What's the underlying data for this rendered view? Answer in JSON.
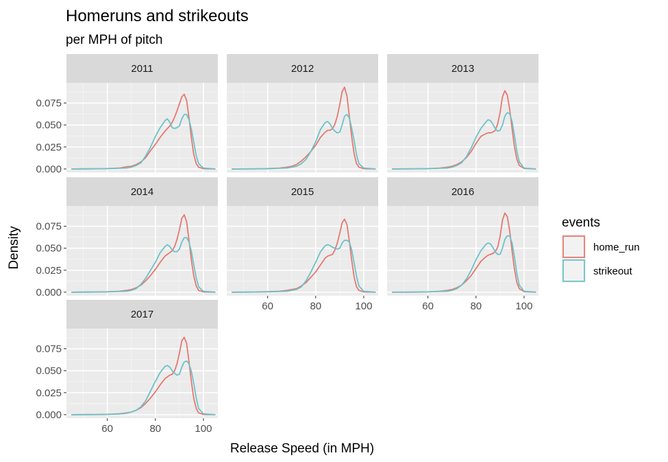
{
  "chart_data": {
    "type": "line",
    "title": "Homeruns and strikeouts",
    "subtitle": "per MPH of pitch",
    "xlabel": "Release Speed (in MPH)",
    "ylabel": "Density",
    "xlim": [
      43,
      106
    ],
    "ylim": [
      -0.004,
      0.098
    ],
    "x_ticks": [
      60,
      80,
      100
    ],
    "x_tick_labels": [
      "60",
      "80",
      "100"
    ],
    "y_ticks": [
      0,
      0.025,
      0.05,
      0.075
    ],
    "y_tick_labels": [
      "0.000",
      "0.025",
      "0.050",
      "0.075"
    ],
    "grid": true,
    "legend": {
      "title": "events",
      "position": "right",
      "entries": [
        {
          "label": "home_run",
          "color": "#E6776F"
        },
        {
          "label": "strikeout",
          "color": "#6CC2C8"
        }
      ]
    },
    "x": [
      45,
      55,
      60,
      65,
      68,
      70,
      72,
      74,
      76,
      78,
      80,
      82,
      84,
      85,
      86,
      87,
      88,
      89,
      90,
      91,
      92,
      93,
      94,
      95,
      96,
      97,
      98,
      100,
      105
    ],
    "panels": [
      {
        "label": "2011",
        "series": [
          {
            "name": "home_run",
            "values": [
              0,
              0.0002,
              0.0005,
              0.001,
              0.0025,
              0.003,
              0.005,
              0.008,
              0.013,
              0.021,
              0.028,
              0.036,
              0.043,
              0.046,
              0.049,
              0.053,
              0.059,
              0.066,
              0.074,
              0.082,
              0.085,
              0.078,
              0.058,
              0.035,
              0.016,
              0.006,
              0.002,
              0.0003,
              0
            ]
          },
          {
            "name": "strikeout",
            "values": [
              0,
              0.0002,
              0.0004,
              0.0008,
              0.001,
              0.002,
              0.004,
              0.007,
              0.015,
              0.025,
              0.037,
              0.047,
              0.055,
              0.057,
              0.053,
              0.047,
              0.046,
              0.047,
              0.049,
              0.057,
              0.062,
              0.062,
              0.056,
              0.045,
              0.03,
              0.015,
              0.006,
              0.001,
              0
            ]
          }
        ]
      },
      {
        "label": "2012",
        "series": [
          {
            "name": "home_run",
            "values": [
              0,
              0.0001,
              0.0005,
              0.001,
              0.002,
              0.003,
              0.005,
              0.009,
              0.014,
              0.02,
              0.027,
              0.036,
              0.042,
              0.044,
              0.044,
              0.046,
              0.051,
              0.06,
              0.073,
              0.088,
              0.093,
              0.083,
              0.06,
              0.036,
              0.017,
              0.006,
              0.002,
              0.0003,
              0
            ]
          },
          {
            "name": "strikeout",
            "values": [
              0,
              0.0002,
              0.0003,
              0.0008,
              0.001,
              0.002,
              0.003,
              0.006,
              0.011,
              0.02,
              0.031,
              0.045,
              0.053,
              0.054,
              0.051,
              0.046,
              0.043,
              0.041,
              0.042,
              0.05,
              0.06,
              0.062,
              0.058,
              0.046,
              0.032,
              0.016,
              0.006,
              0.001,
              0
            ]
          }
        ]
      },
      {
        "label": "2013",
        "series": [
          {
            "name": "home_run",
            "values": [
              0,
              0.0002,
              0.0004,
              0.001,
              0.002,
              0.003,
              0.005,
              0.008,
              0.013,
              0.02,
              0.029,
              0.037,
              0.04,
              0.041,
              0.041,
              0.042,
              0.044,
              0.051,
              0.064,
              0.082,
              0.089,
              0.084,
              0.068,
              0.046,
              0.025,
              0.011,
              0.004,
              0.0006,
              0
            ]
          },
          {
            "name": "strikeout",
            "values": [
              0,
              0.0002,
              0.0004,
              0.0008,
              0.001,
              0.002,
              0.004,
              0.007,
              0.014,
              0.024,
              0.036,
              0.046,
              0.053,
              0.056,
              0.055,
              0.051,
              0.046,
              0.043,
              0.044,
              0.05,
              0.06,
              0.064,
              0.063,
              0.054,
              0.038,
              0.02,
              0.008,
              0.001,
              0
            ]
          }
        ]
      },
      {
        "label": "2014",
        "series": [
          {
            "name": "home_run",
            "values": [
              0,
              0.0002,
              0.0005,
              0.001,
              0.002,
              0.003,
              0.005,
              0.008,
              0.013,
              0.019,
              0.026,
              0.034,
              0.041,
              0.043,
              0.045,
              0.047,
              0.052,
              0.06,
              0.071,
              0.084,
              0.088,
              0.08,
              0.059,
              0.036,
              0.018,
              0.007,
              0.002,
              0.0003,
              0
            ]
          },
          {
            "name": "strikeout",
            "values": [
              0,
              0.0002,
              0.0004,
              0.0008,
              0.001,
              0.002,
              0.004,
              0.009,
              0.016,
              0.025,
              0.034,
              0.045,
              0.052,
              0.054,
              0.052,
              0.048,
              0.046,
              0.046,
              0.049,
              0.057,
              0.062,
              0.062,
              0.057,
              0.046,
              0.031,
              0.016,
              0.006,
              0.001,
              0
            ]
          }
        ]
      },
      {
        "label": "2015",
        "series": [
          {
            "name": "home_run",
            "values": [
              0,
              0.0002,
              0.0006,
              0.001,
              0.002,
              0.003,
              0.004,
              0.007,
              0.011,
              0.017,
              0.023,
              0.031,
              0.039,
              0.041,
              0.042,
              0.043,
              0.048,
              0.056,
              0.067,
              0.079,
              0.083,
              0.077,
              0.058,
              0.036,
              0.017,
              0.006,
              0.002,
              0.0003,
              0
            ]
          },
          {
            "name": "strikeout",
            "values": [
              0,
              0.0002,
              0.0004,
              0.0008,
              0.001,
              0.002,
              0.003,
              0.006,
              0.013,
              0.023,
              0.034,
              0.046,
              0.053,
              0.054,
              0.053,
              0.051,
              0.05,
              0.049,
              0.05,
              0.056,
              0.059,
              0.059,
              0.057,
              0.048,
              0.033,
              0.018,
              0.007,
              0.001,
              0
            ]
          }
        ]
      },
      {
        "label": "2016",
        "series": [
          {
            "name": "home_run",
            "values": [
              0,
              0.0001,
              0.0004,
              0.001,
              0.002,
              0.003,
              0.005,
              0.008,
              0.013,
              0.019,
              0.027,
              0.035,
              0.04,
              0.042,
              0.043,
              0.044,
              0.046,
              0.051,
              0.063,
              0.082,
              0.09,
              0.086,
              0.07,
              0.047,
              0.026,
              0.011,
              0.004,
              0.0006,
              0
            ]
          },
          {
            "name": "strikeout",
            "values": [
              0,
              0.0002,
              0.0004,
              0.0008,
              0.001,
              0.002,
              0.004,
              0.008,
              0.015,
              0.025,
              0.037,
              0.047,
              0.054,
              0.056,
              0.055,
              0.051,
              0.046,
              0.043,
              0.043,
              0.05,
              0.06,
              0.064,
              0.064,
              0.056,
              0.04,
              0.021,
              0.008,
              0.001,
              0
            ]
          }
        ]
      },
      {
        "label": "2017",
        "series": [
          {
            "name": "home_run",
            "values": [
              0,
              0.0001,
              0.0004,
              0.001,
              0.002,
              0.003,
              0.005,
              0.008,
              0.013,
              0.019,
              0.026,
              0.034,
              0.041,
              0.043,
              0.045,
              0.046,
              0.05,
              0.058,
              0.07,
              0.084,
              0.088,
              0.081,
              0.06,
              0.037,
              0.018,
              0.007,
              0.002,
              0.0003,
              0
            ]
          },
          {
            "name": "strikeout",
            "values": [
              0,
              0.0002,
              0.0004,
              0.0008,
              0.0015,
              0.003,
              0.005,
              0.009,
              0.016,
              0.027,
              0.038,
              0.048,
              0.055,
              0.056,
              0.054,
              0.05,
              0.047,
              0.045,
              0.046,
              0.054,
              0.06,
              0.061,
              0.058,
              0.049,
              0.035,
              0.019,
              0.007,
              0.001,
              0
            ]
          }
        ]
      }
    ]
  }
}
